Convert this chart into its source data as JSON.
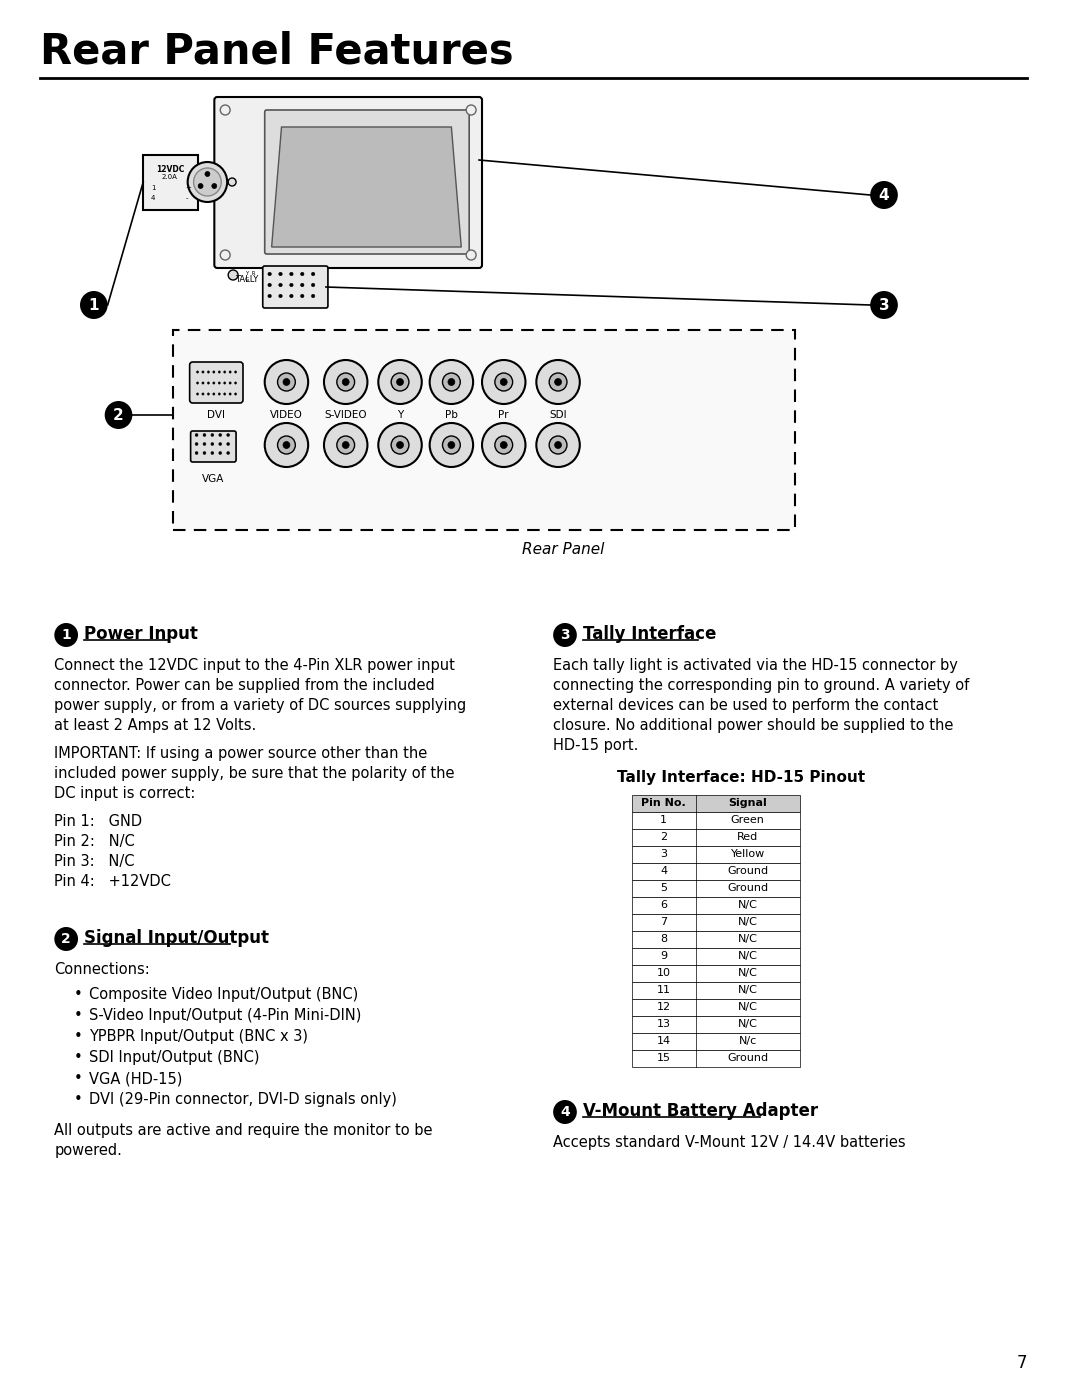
{
  "title": "Rear Panel Features",
  "page_number": "7",
  "bg_color": "#ffffff",
  "text_color": "#000000",
  "section1_heading": "Power Input",
  "section1_body_para1": "Connect the 12VDC input to the 4-Pin XLR power input\nconnector. Power can be supplied from the included\npower supply, or from a variety of DC sources supplying\nat least 2 Amps at 12 Volts.",
  "section1_body_para2": "IMPORTANT: If using a power source other than the\nincluded power supply, be sure that the polarity of the\nDC input is correct:",
  "section1_pins": [
    "Pin 1:   GND",
    "Pin 2:   N/C",
    "Pin 3:   N/C",
    "Pin 4:   +12VDC"
  ],
  "section2_heading": "Signal Input/Output",
  "section2_connections": "Connections:",
  "section2_bullets": [
    "Composite Video Input/Output (BNC)",
    "S-Video Input/Output (4-Pin Mini-DIN)",
    "YPBPR Input/Output (BNC x 3)",
    "SDI Input/Output (BNC)",
    "VGA (HD-15)",
    "DVI (29-Pin connector, DVI-D signals only)"
  ],
  "section2_footer": "All outputs are active and require the monitor to be\npowered.",
  "section3_heading": "Tally Interface",
  "section3_body": "Each tally light is activated via the HD-15 connector by\nconnecting the corresponding pin to ground. A variety of\nexternal devices can be used to perform the contact\nclosure. No additional power should be supplied to the\nHD-15 port.",
  "section3_table_title": "Tally Interface: HD-15 Pinout",
  "tally_pins": [
    [
      "Pin No.",
      "Signal"
    ],
    [
      "1",
      "Green"
    ],
    [
      "2",
      "Red"
    ],
    [
      "3",
      "Yellow"
    ],
    [
      "4",
      "Ground"
    ],
    [
      "5",
      "Ground"
    ],
    [
      "6",
      "N/C"
    ],
    [
      "7",
      "N/C"
    ],
    [
      "8",
      "N/C"
    ],
    [
      "9",
      "N/C"
    ],
    [
      "10",
      "N/C"
    ],
    [
      "11",
      "N/C"
    ],
    [
      "12",
      "N/C"
    ],
    [
      "13",
      "N/C"
    ],
    [
      "14",
      "N/c"
    ],
    [
      "15",
      "Ground"
    ]
  ],
  "section4_heading": "V-Mount Battery Adapter",
  "section4_body": "Accepts standard V-Mount 12V / 14.4V batteries",
  "rear_panel_label": "Rear Panel"
}
